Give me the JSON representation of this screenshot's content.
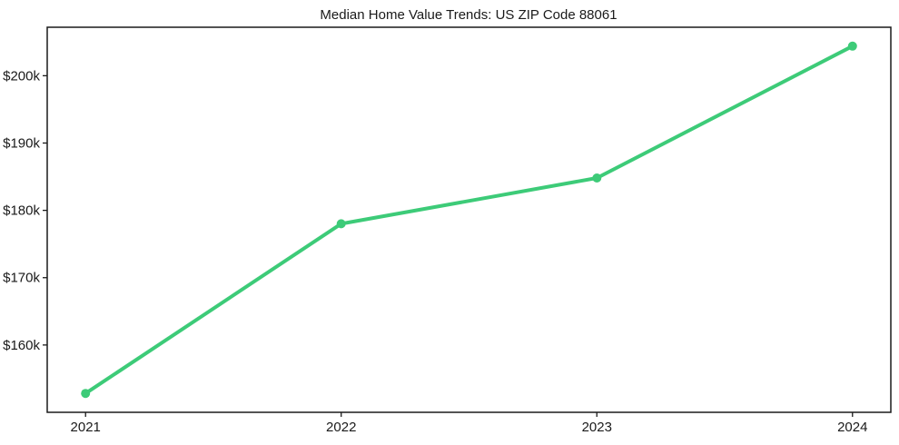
{
  "figure": {
    "background": "#ffffff"
  },
  "chart_data": {
    "type": "line",
    "title": "Median Home Value Trends: US ZIP Code 88061",
    "x": [
      2021,
      2022,
      2023,
      2024
    ],
    "x_tick_labels": [
      "2021",
      "2022",
      "2023",
      "2024"
    ],
    "values": [
      152800,
      178000,
      184800,
      204400
    ],
    "y_ticks": [
      {
        "value": 160000,
        "label": "$160k"
      },
      {
        "value": 170000,
        "label": "$170k"
      },
      {
        "value": 180000,
        "label": "$180k"
      },
      {
        "value": 190000,
        "label": "$190k"
      },
      {
        "value": 200000,
        "label": "$200k"
      }
    ],
    "xlabel": "",
    "ylabel": "",
    "xlim": [
      2020.85,
      2024.15
    ],
    "ylim": [
      150000,
      207200
    ],
    "grid": false,
    "legend": "none",
    "line_color": "#3dcb78",
    "marker": "circle",
    "axis_color": "#1a1a1a",
    "text_color": "#1a1a1a"
  }
}
